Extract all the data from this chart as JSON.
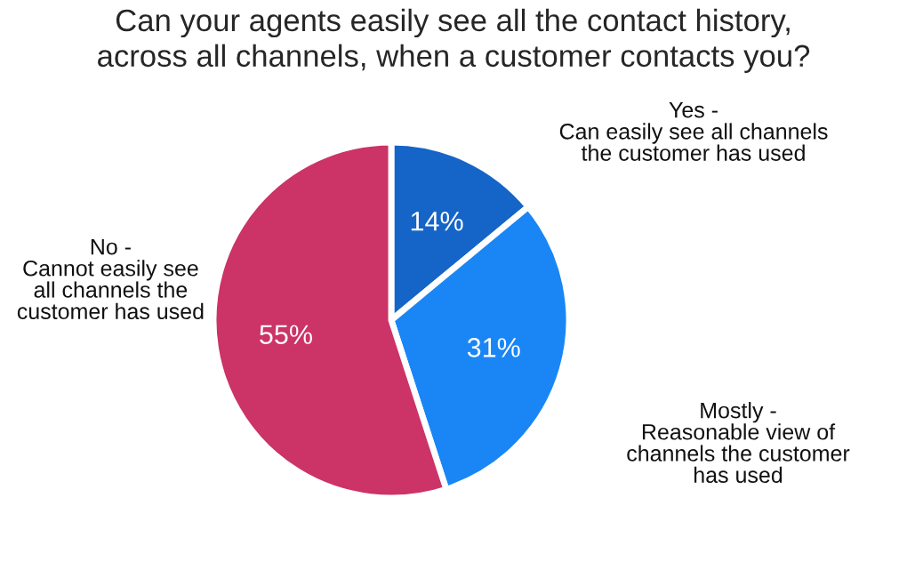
{
  "chart_data": {
    "type": "pie",
    "title": "Can your agents easily see all the contact history,\nacross all channels, when a customer contacts you?",
    "categories": [
      "Yes -\nCan easily see all channels\nthe customer has used",
      "Mostly -\nReasonable view of\nchannels the customer\nhas used",
      "No -\nCannot easily see\nall channels the\ncustomer has used"
    ],
    "values": [
      14,
      31,
      55
    ],
    "colors": [
      "#1565c8",
      "#1a86f5",
      "#cc3366"
    ],
    "value_labels": [
      "14%",
      "31%",
      "55%"
    ]
  }
}
